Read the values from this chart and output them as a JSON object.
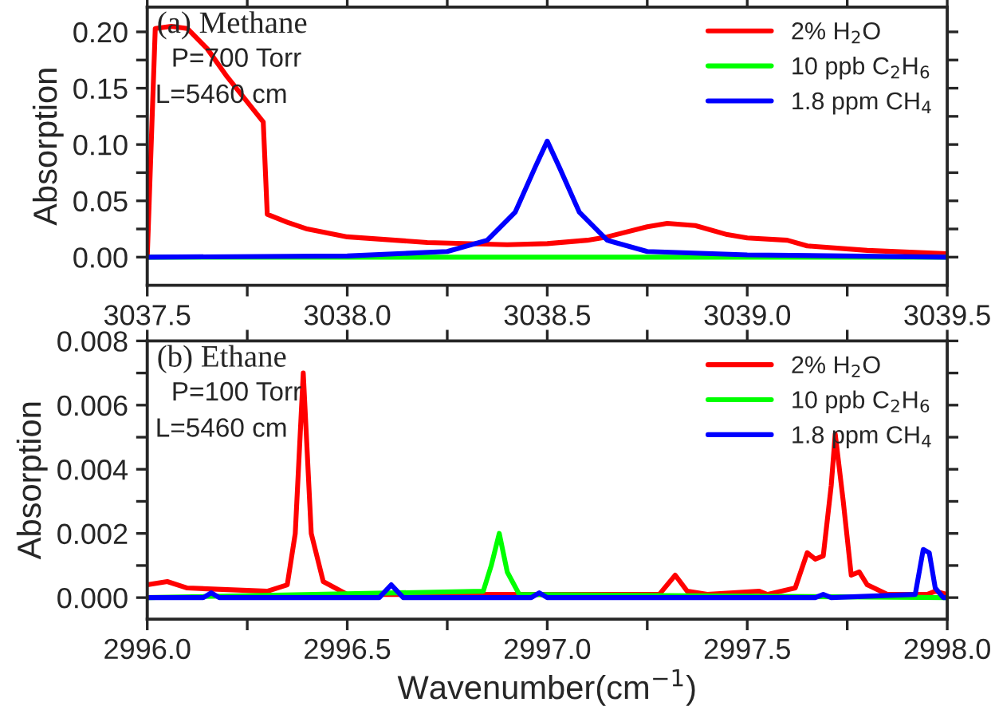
{
  "chart_data": [
    {
      "type": "line",
      "ylabel": "Absorption",
      "annotations": [
        "(a) Methane",
        "P=700 Torr",
        "L=5460 cm"
      ],
      "legend": "top right",
      "grid": false,
      "xlim": [
        3037.5,
        3039.5
      ],
      "xticks": [
        {
          "value": 3037.5,
          "label": "3037.5"
        },
        {
          "value": 3037.75,
          "label": null
        },
        {
          "value": 3038.0,
          "label": "3038.0"
        },
        {
          "value": 3038.25,
          "label": null
        },
        {
          "value": 3038.5,
          "label": "3038.5"
        },
        {
          "value": 3038.75,
          "label": null
        },
        {
          "value": 3039.0,
          "label": "3039.0"
        },
        {
          "value": 3039.25,
          "label": null
        },
        {
          "value": 3039.5,
          "label": "3039.5"
        }
      ],
      "ylim": [
        -0.025,
        0.222
      ],
      "yticks": [
        {
          "value": 0.0,
          "label": "0.00"
        },
        {
          "value": 0.025,
          "label": null
        },
        {
          "value": 0.05,
          "label": "0.05"
        },
        {
          "value": 0.075,
          "label": null
        },
        {
          "value": 0.1,
          "label": "0.10"
        },
        {
          "value": 0.125,
          "label": null
        },
        {
          "value": 0.15,
          "label": "0.15"
        },
        {
          "value": 0.175,
          "label": null
        },
        {
          "value": 0.2,
          "label": "0.20"
        }
      ],
      "series": [
        {
          "name": "2% H$_{2}$O",
          "color": "#ff0000",
          "x": [
            3037.5,
            3037.52,
            3037.56,
            3037.6,
            3037.65,
            3037.7,
            3037.79,
            3037.8,
            3037.85,
            3037.9,
            3038.0,
            3038.2,
            3038.4,
            3038.5,
            3038.6,
            3038.65,
            3038.75,
            3038.8,
            3038.87,
            3038.95,
            3039.0,
            3039.1,
            3039.15,
            3039.3,
            3039.5
          ],
          "values": [
            0.0,
            0.203,
            0.205,
            0.203,
            0.185,
            0.16,
            0.12,
            0.038,
            0.031,
            0.025,
            0.018,
            0.013,
            0.011,
            0.012,
            0.015,
            0.018,
            0.027,
            0.03,
            0.028,
            0.02,
            0.017,
            0.015,
            0.01,
            0.006,
            0.003
          ]
        },
        {
          "name": "10 ppb C$_{2}$H$_{6}$",
          "color": "#00ff00",
          "x": [
            3037.5,
            3039.5
          ],
          "values": [
            0.0,
            0.0
          ]
        },
        {
          "name": "1.8 ppm CH$_{4}$",
          "color": "#0000ff",
          "x": [
            3037.5,
            3038.0,
            3038.25,
            3038.35,
            3038.42,
            3038.47,
            3038.5,
            3038.53,
            3038.58,
            3038.65,
            3038.75,
            3039.0,
            3039.5
          ],
          "values": [
            0.0,
            0.001,
            0.005,
            0.015,
            0.04,
            0.08,
            0.103,
            0.08,
            0.04,
            0.015,
            0.005,
            0.002,
            0.0
          ]
        }
      ]
    },
    {
      "type": "line",
      "xlabel": "Wavenumber(cm$^{−1}$)",
      "ylabel": "Absorption",
      "annotations": [
        "(b) Ethane",
        "P=100 Torr",
        "L=5460 cm"
      ],
      "legend": "top right",
      "grid": false,
      "xlim": [
        2996.0,
        2998.0
      ],
      "xticks": [
        {
          "value": 2996.0,
          "label": "2996.0"
        },
        {
          "value": 2996.25,
          "label": null
        },
        {
          "value": 2996.5,
          "label": "2996.5"
        },
        {
          "value": 2996.75,
          "label": null
        },
        {
          "value": 2997.0,
          "label": "2997.0"
        },
        {
          "value": 2997.25,
          "label": null
        },
        {
          "value": 2997.5,
          "label": "2997.5"
        },
        {
          "value": 2997.75,
          "label": null
        },
        {
          "value": 2998.0,
          "label": "2998.0"
        }
      ],
      "ylim": [
        -0.00067,
        0.008
      ],
      "yticks": [
        {
          "value": 0.0,
          "label": "0.000"
        },
        {
          "value": 0.001,
          "label": null
        },
        {
          "value": 0.002,
          "label": "0.002"
        },
        {
          "value": 0.003,
          "label": null
        },
        {
          "value": 0.004,
          "label": "0.004"
        },
        {
          "value": 0.005,
          "label": null
        },
        {
          "value": 0.006,
          "label": "0.006"
        },
        {
          "value": 0.007,
          "label": null
        },
        {
          "value": 0.008,
          "label": "0.008"
        }
      ],
      "series": [
        {
          "name": "2% H$_{2}$O",
          "color": "#ff0000",
          "x": [
            2996.0,
            2996.05,
            2996.1,
            2996.3,
            2996.35,
            2996.37,
            2996.39,
            2996.41,
            2996.44,
            2996.5,
            2997.0,
            2997.28,
            2997.32,
            2997.35,
            2997.4,
            2997.53,
            2997.55,
            2997.62,
            2997.65,
            2997.67,
            2997.69,
            2997.71,
            2997.72,
            2997.74,
            2997.76,
            2997.78,
            2997.8,
            2997.85,
            2997.95,
            2997.97,
            2998.0
          ],
          "values": [
            0.0004,
            0.0005,
            0.0003,
            0.0002,
            0.0004,
            0.002,
            0.007,
            0.002,
            0.0005,
            0.0001,
            0.0001,
            0.0001,
            0.0007,
            0.0002,
            0.0001,
            0.0002,
            0.0001,
            0.0003,
            0.0014,
            0.0012,
            0.0013,
            0.0035,
            0.0051,
            0.003,
            0.0007,
            0.0008,
            0.0004,
            0.0001,
            0.0001,
            0.0002,
            0.0001
          ]
        },
        {
          "name": "10 ppb C$_{2}$H$_{6}$",
          "color": "#00ff00",
          "x": [
            2996.0,
            2996.84,
            2996.86,
            2996.88,
            2996.9,
            2996.93,
            2998.0
          ],
          "values": [
            0.0,
            0.0002,
            0.001,
            0.002,
            0.0008,
            0.0001,
            0.0
          ]
        },
        {
          "name": "1.8 ppm CH$_{4}$",
          "color": "#0000ff",
          "x": [
            2996.0,
            2996.14,
            2996.16,
            2996.18,
            2996.58,
            2996.61,
            2996.64,
            2996.96,
            2996.98,
            2997.0,
            2997.67,
            2997.69,
            2997.71,
            2997.92,
            2997.94,
            2997.955,
            2997.97,
            2997.99,
            2998.0
          ],
          "values": [
            0.0,
            0.0,
            0.00015,
            0.0,
            0.0,
            0.0004,
            0.0,
            0.0,
            0.00015,
            0.0,
            0.0,
            0.0001,
            0.0,
            0.0001,
            0.0015,
            0.0014,
            0.0003,
            0.0,
            0.0
          ]
        }
      ]
    }
  ]
}
